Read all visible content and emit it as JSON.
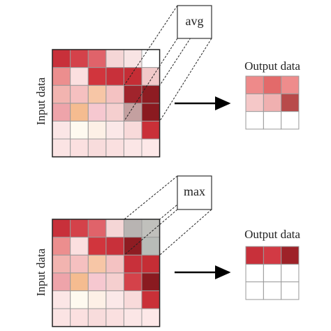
{
  "panels": [
    {
      "operation": "avg",
      "input_label": "Input data",
      "output_label": "Output data"
    },
    {
      "operation": "max",
      "input_label": "Input data",
      "output_label": "Output data"
    }
  ]
}
